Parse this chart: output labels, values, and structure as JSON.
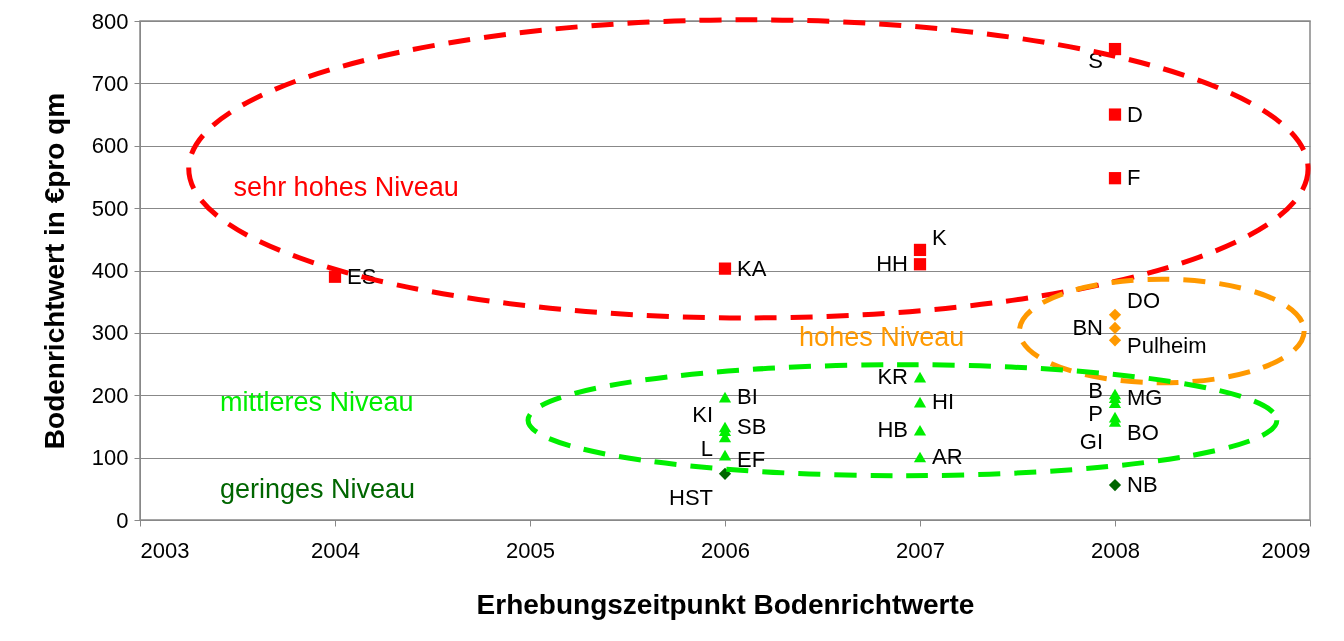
{
  "chart_data": {
    "type": "scatter",
    "xlabel": "Erhebungszeitpunkt Bodenrichtwerte",
    "ylabel": "Bodenrichtwert in €pro qm",
    "xlim": [
      2003,
      2009
    ],
    "xticks": [
      2003,
      2004,
      2005,
      2006,
      2007,
      2008,
      2009
    ],
    "ylim": [
      0,
      800
    ],
    "yticks": [
      0,
      100,
      200,
      300,
      400,
      500,
      600,
      700,
      800
    ],
    "grid": "y",
    "series": [
      {
        "name": "sehr hohes Niveau",
        "color": "#ff0000",
        "marker": "square",
        "x": [
          2004,
          2006,
          2007,
          2007,
          2008,
          2008,
          2008
        ],
        "values": [
          390,
          403,
          410,
          433,
          755,
          650,
          548
        ],
        "value_labels": [
          "ES",
          "KA",
          "HH",
          "K",
          "S",
          "D",
          "F"
        ]
      },
      {
        "name": "hohes Niveau",
        "color": "#ff9900",
        "marker": "diamond",
        "x": [
          2008,
          2008,
          2008
        ],
        "values": [
          329,
          308,
          288
        ],
        "value_labels": [
          "DO",
          "BN",
          "Pulheim"
        ]
      },
      {
        "name": "mittleres Niveau",
        "color": "#00ee00",
        "marker": "triangle",
        "x": [
          2006,
          2006,
          2006,
          2006,
          2006,
          2007,
          2007,
          2007,
          2007,
          2008,
          2008,
          2008,
          2008,
          2008
        ],
        "values": [
          197,
          149,
          143,
          133,
          104,
          229,
          189,
          144,
          101,
          202,
          196,
          188,
          165,
          158
        ],
        "value_labels": [
          "BI",
          "KI",
          "SB",
          "L",
          "EF",
          "KR",
          "HI",
          "HB",
          "AR",
          "B",
          "MG",
          "P",
          "GI",
          "BO"
        ]
      },
      {
        "name": "geringes Niveau",
        "color": "#006600",
        "marker": "diamond",
        "x": [
          2006,
          2008
        ],
        "values": [
          74,
          56
        ],
        "value_labels": [
          "HST",
          "NB"
        ]
      }
    ]
  }
}
